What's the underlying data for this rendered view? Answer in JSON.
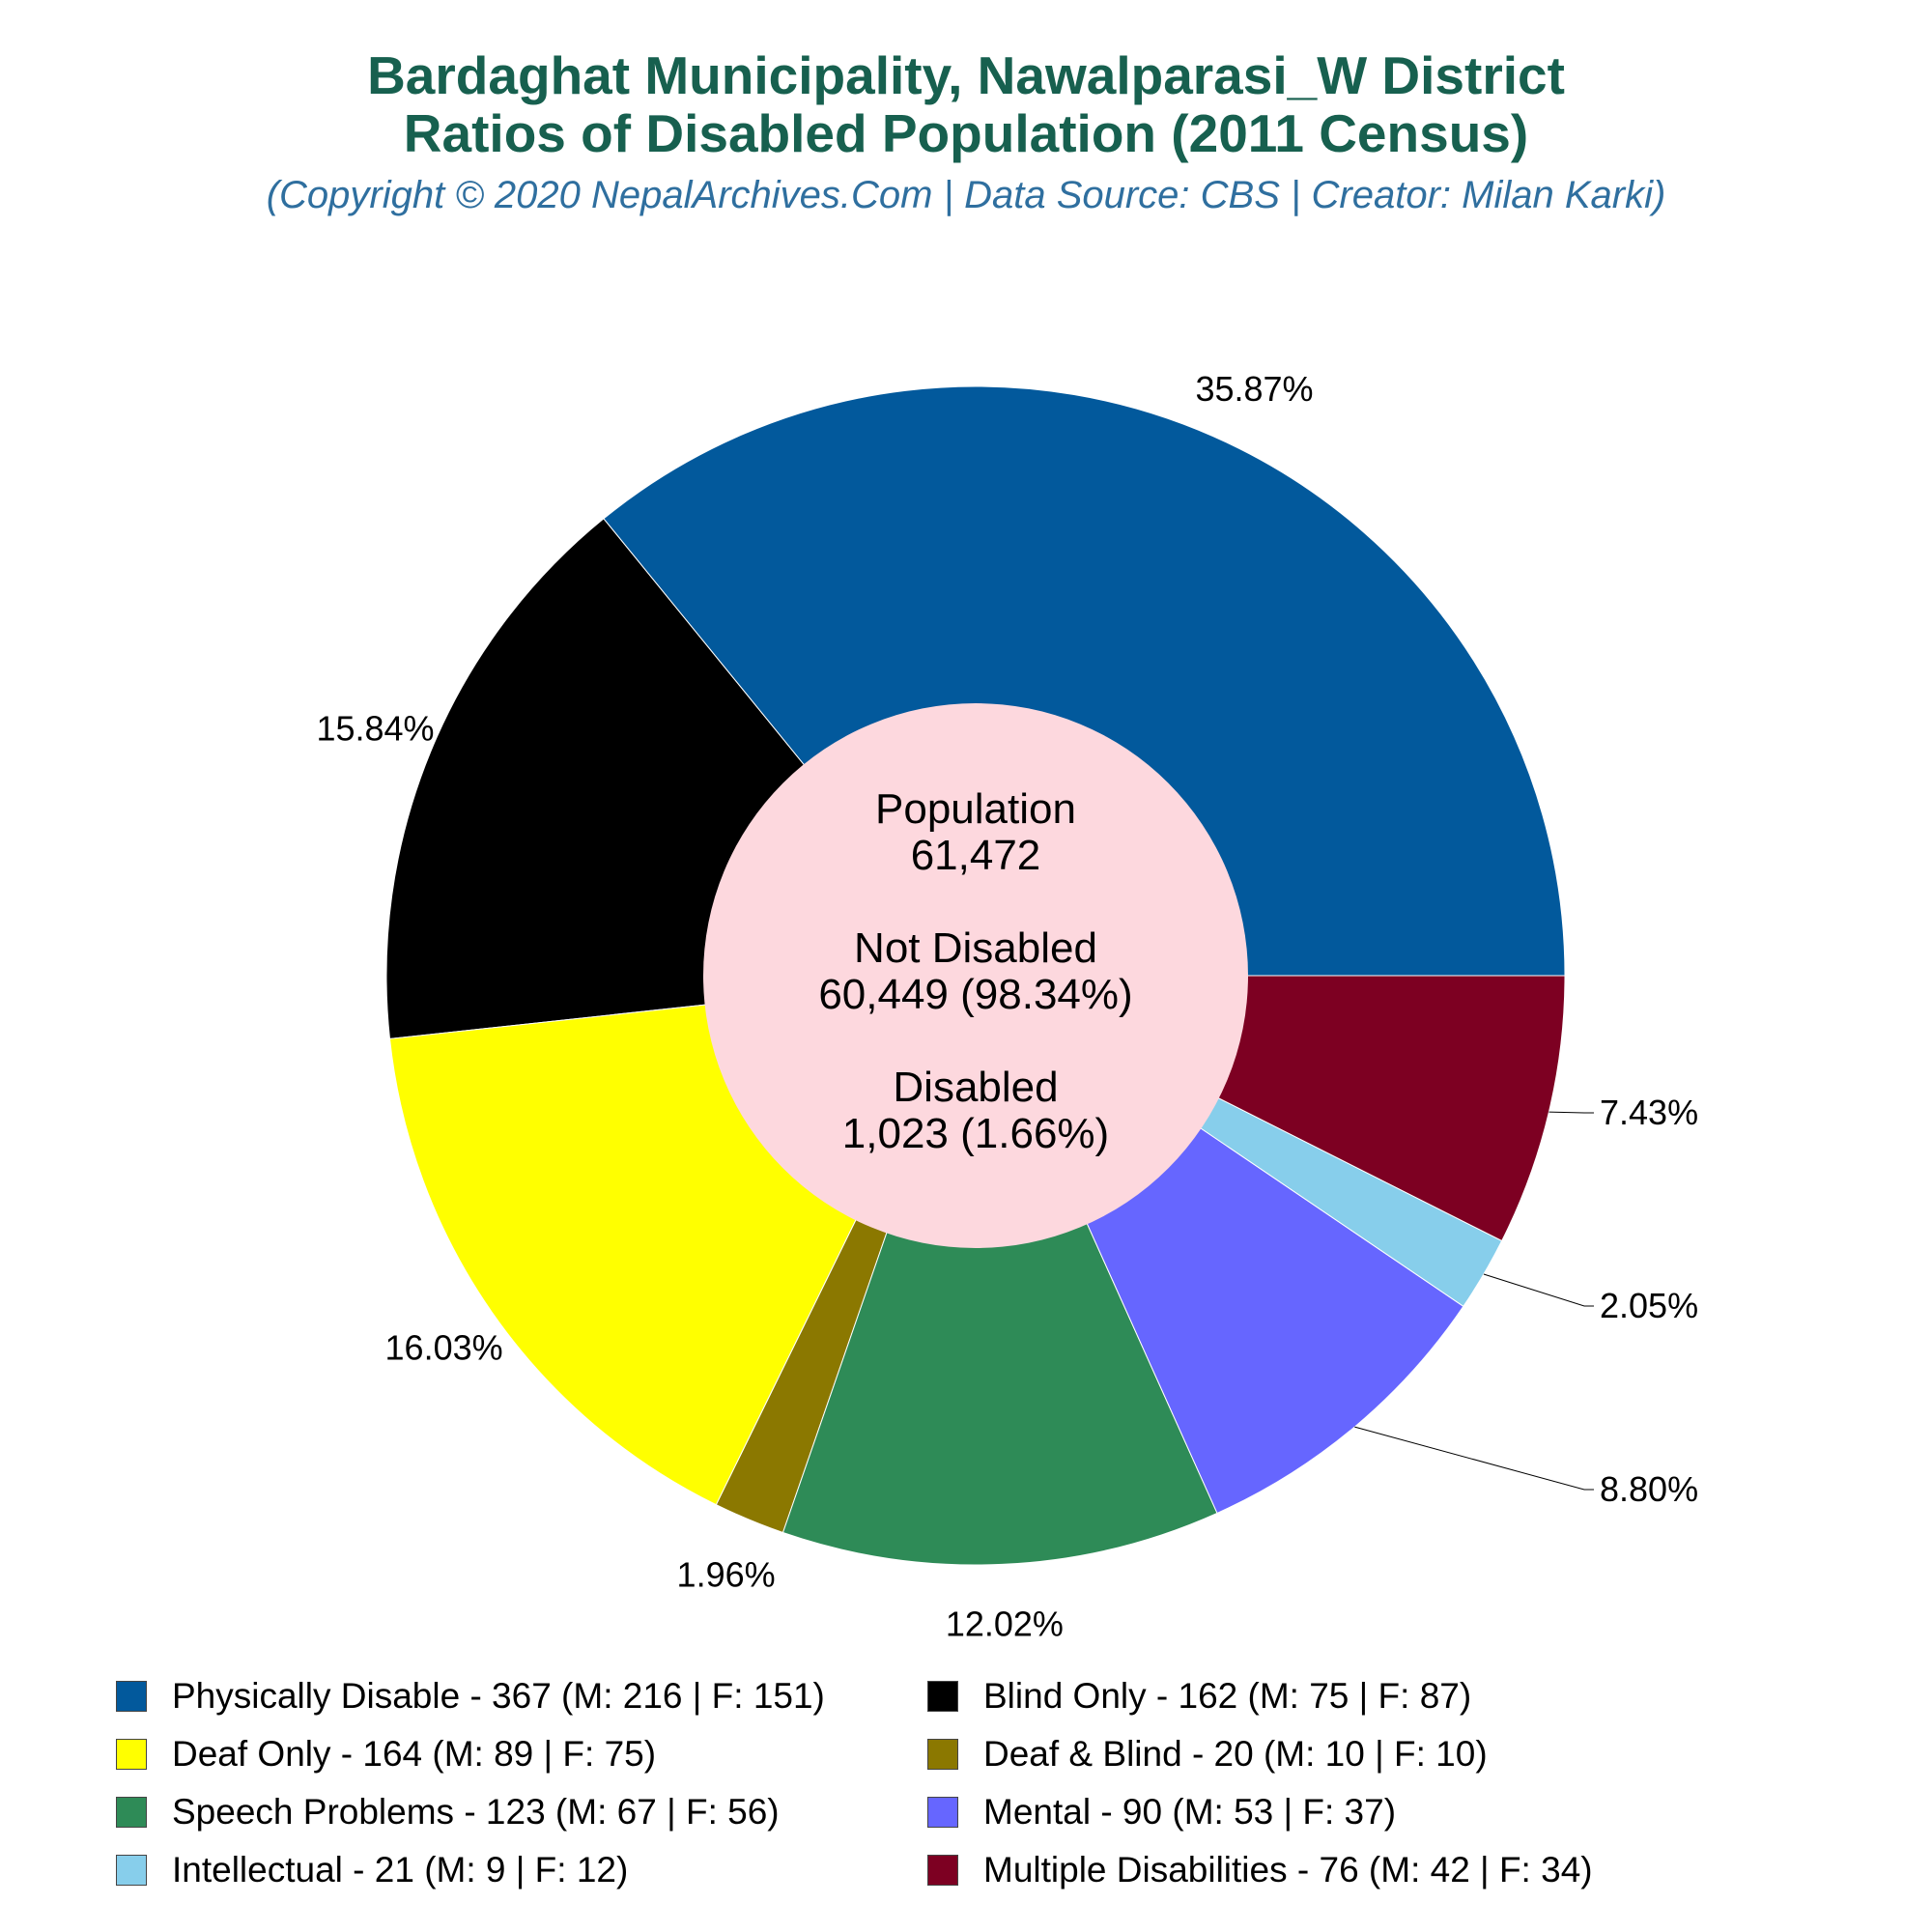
{
  "title_line1": "Bardaghat Municipality, Nawalparasi_W District",
  "title_line2": "Ratios of Disabled Population (2011 Census)",
  "subtitle": "(Copyright © 2020 NepalArchives.Com | Data Source: CBS | Creator: Milan Karki)",
  "center": {
    "population_label": "Population",
    "population_value": "61,472",
    "not_disabled_label": "Not Disabled",
    "not_disabled_value": "60,449 (98.34%)",
    "disabled_label": "Disabled",
    "disabled_value": "1,023 (1.66%)"
  },
  "chart_data": {
    "type": "pie",
    "title": "Bardaghat Municipality, Nawalparasi_W District Ratios of Disabled Population (2011 Census)",
    "legend_position": "bottom",
    "slices": [
      {
        "name": "Physically Disable",
        "value": 367,
        "male": 216,
        "female": 151,
        "percent": "35.87%",
        "color": "#02599c",
        "legend": "Physically Disable - 367 (M: 216 | F: 151)"
      },
      {
        "name": "Blind Only",
        "value": 162,
        "male": 75,
        "female": 87,
        "percent": "15.84%",
        "color": "#000000",
        "legend": "Blind Only - 162 (M: 75 | F: 87)"
      },
      {
        "name": "Deaf Only",
        "value": 164,
        "male": 89,
        "female": 75,
        "percent": "16.03%",
        "color": "#ffff00",
        "legend": "Deaf Only - 164 (M: 89 | F: 75)"
      },
      {
        "name": "Deaf & Blind",
        "value": 20,
        "male": 10,
        "female": 10,
        "percent": "1.96%",
        "color": "#8b7800",
        "legend": "Deaf & Blind - 20 (M: 10 | F: 10)"
      },
      {
        "name": "Speech Problems",
        "value": 123,
        "male": 67,
        "female": 56,
        "percent": "12.02%",
        "color": "#2e8b57",
        "legend": "Speech Problems - 123 (M: 67 | F: 56)"
      },
      {
        "name": "Mental",
        "value": 90,
        "male": 53,
        "female": 37,
        "percent": "8.80%",
        "color": "#6666ff",
        "legend": "Mental - 90 (M: 53 | F: 37)"
      },
      {
        "name": "Intellectual",
        "value": 21,
        "male": 9,
        "female": 12,
        "percent": "2.05%",
        "color": "#87ceeb",
        "legend": "Intellectual - 21 (M: 9 | F: 12)"
      },
      {
        "name": "Multiple Disabilities",
        "value": 76,
        "male": 42,
        "female": 34,
        "percent": "7.43%",
        "color": "#7d0022",
        "legend": "Multiple Disabilities - 76 (M: 42 | F: 34)"
      }
    ]
  }
}
